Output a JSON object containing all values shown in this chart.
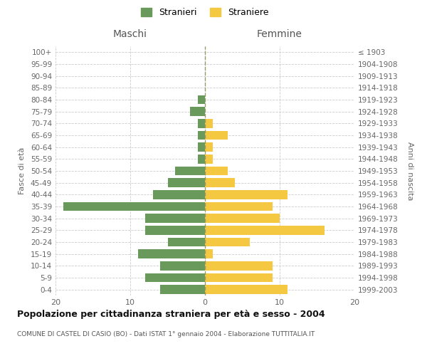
{
  "age_groups": [
    "0-4",
    "5-9",
    "10-14",
    "15-19",
    "20-24",
    "25-29",
    "30-34",
    "35-39",
    "40-44",
    "45-49",
    "50-54",
    "55-59",
    "60-64",
    "65-69",
    "70-74",
    "75-79",
    "80-84",
    "85-89",
    "90-94",
    "95-99",
    "100+"
  ],
  "birth_years": [
    "1999-2003",
    "1994-1998",
    "1989-1993",
    "1984-1988",
    "1979-1983",
    "1974-1978",
    "1969-1973",
    "1964-1968",
    "1959-1963",
    "1954-1958",
    "1949-1953",
    "1944-1948",
    "1939-1943",
    "1934-1938",
    "1929-1933",
    "1924-1928",
    "1919-1923",
    "1914-1918",
    "1909-1913",
    "1904-1908",
    "≤ 1903"
  ],
  "maschi": [
    6,
    8,
    6,
    9,
    5,
    8,
    8,
    19,
    7,
    5,
    4,
    1,
    1,
    1,
    1,
    2,
    1,
    0,
    0,
    0,
    0
  ],
  "femmine": [
    11,
    9,
    9,
    1,
    6,
    16,
    10,
    9,
    11,
    4,
    3,
    1,
    1,
    3,
    1,
    0,
    0,
    0,
    0,
    0,
    0
  ],
  "color_maschi": "#6a9a5b",
  "color_femmine": "#f5c842",
  "title": "Popolazione per cittadinanza straniera per età e sesso - 2004",
  "subtitle": "COMUNE DI CASTEL DI CASIO (BO) - Dati ISTAT 1° gennaio 2004 - Elaborazione TUTTITALIA.IT",
  "ylabel_left": "Fasce di età",
  "ylabel_right": "Anni di nascita",
  "xlabel_maschi": "Maschi",
  "xlabel_femmine": "Femmine",
  "legend_maschi": "Stranieri",
  "legend_femmine": "Straniere",
  "xlim": 20,
  "background_color": "#ffffff",
  "grid_color": "#cccccc"
}
